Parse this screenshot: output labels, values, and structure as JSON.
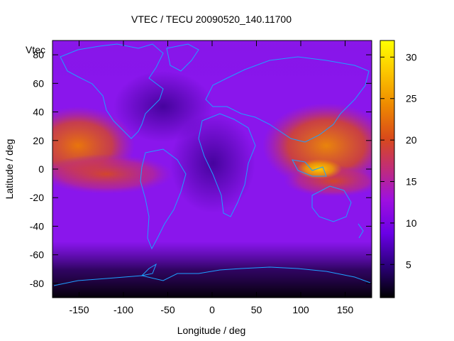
{
  "chart_data": {
    "type": "heatmap",
    "title": "VTEC / TECU 20090520_140.11700",
    "xlabel": "Longitude / deg",
    "ylabel": "Latitude / deg",
    "xlim": [
      -180,
      180
    ],
    "ylim": [
      -90,
      90
    ],
    "x_ticks": [
      -150,
      -100,
      -50,
      0,
      50,
      100,
      150
    ],
    "y_ticks": [
      -80,
      -60,
      -40,
      -20,
      0,
      20,
      40,
      60,
      80
    ],
    "colorbar": {
      "range": [
        1,
        32
      ],
      "ticks": [
        5,
        10,
        15,
        20,
        25,
        30
      ],
      "palette": [
        "#000000",
        "#2e0080",
        "#6a00e6",
        "#9e10e0",
        "#c02c7a",
        "#d94a1a",
        "#ee8a00",
        "#fcc800",
        "#ffff00"
      ]
    },
    "key_label": "Vtec",
    "grid": false,
    "enhancement_regions": [
      {
        "name": "pacific-anomaly-north",
        "lon": -145,
        "lat": 18,
        "value": 21
      },
      {
        "name": "pacific-anomaly-band",
        "lon": -125,
        "lat": -2,
        "value": 19
      },
      {
        "name": "asia-anomaly-north",
        "lon": 120,
        "lat": 18,
        "value": 22
      },
      {
        "name": "asia-peak",
        "lon": 122,
        "lat": 0,
        "value": 28
      },
      {
        "name": "asia-anomaly-south",
        "lon": 150,
        "lat": -12,
        "value": 18
      }
    ],
    "background_value": 11,
    "polar_minimum": {
      "lat": -85,
      "value": 2
    }
  }
}
